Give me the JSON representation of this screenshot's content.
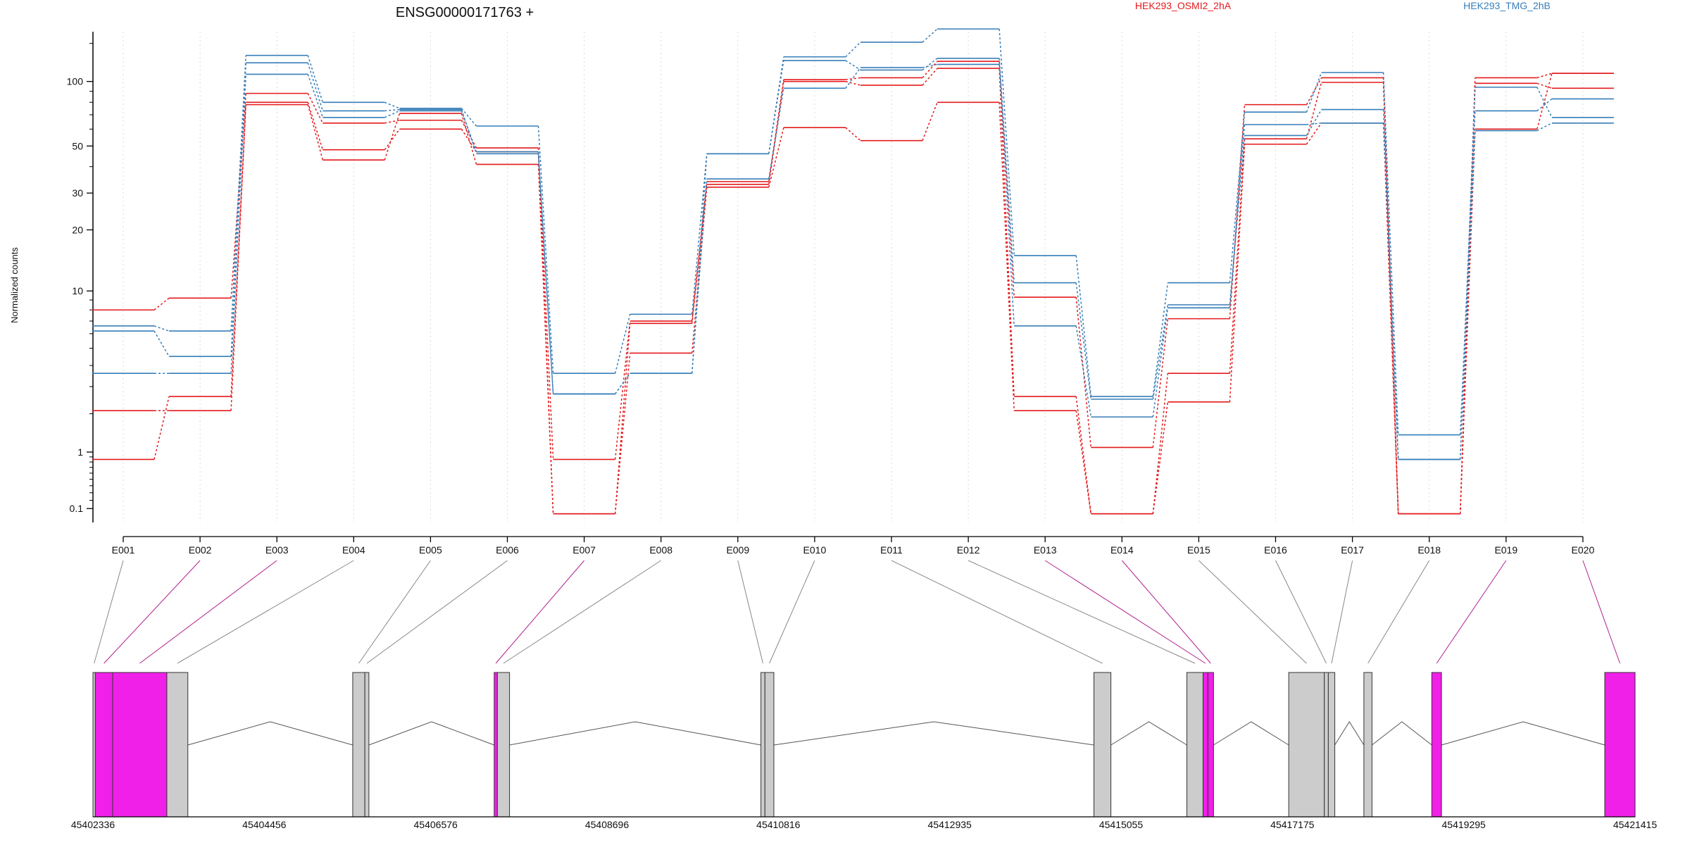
{
  "title": "ENSG00000171763 +",
  "ylabel": "Normalized counts",
  "colors": {
    "OSMI": "#e41a1c",
    "TMG": "#377eb8",
    "exon_bin": "#cccccc",
    "exon_highlight": "#f020e8",
    "axis": "#000000",
    "grid": "#d9d9e3"
  },
  "chart_data": [
    {
      "type": "line",
      "title": "ENSG00000171763 +",
      "ylabel": "Normalized counts",
      "xlabel": "",
      "yscale": "log(1+y) compressed",
      "yticks": [
        0.1,
        1,
        10,
        20,
        30,
        50,
        100
      ],
      "ytick_labels": [
        "0.1",
        "1",
        "10",
        "20",
        "30",
        "50",
        "100"
      ],
      "categories": [
        "E001",
        "E002",
        "E003",
        "E004",
        "E005",
        "E006",
        "E007",
        "E008",
        "E009",
        "E010",
        "E011",
        "E012",
        "E013",
        "E014",
        "E015",
        "E016",
        "E017",
        "E018",
        "E019",
        "E020"
      ],
      "legend": [
        {
          "name": "HEK293_OSMI2_2hA",
          "color": "#e41a1c"
        },
        {
          "name": "HEK293_TMG_2hB",
          "color": "#377eb8"
        }
      ],
      "grid": true,
      "series": [
        {
          "group": "HEK293_OSMI2_2hA",
          "values": [
            8,
            9.2,
            88,
            64,
            66,
            49,
            0.85,
            7,
            34,
            102,
            104,
            124,
            9.3,
            1.1,
            7.2,
            78,
            104,
            0.04,
            104,
            109
          ]
        },
        {
          "group": "HEK293_OSMI2_2hA",
          "values": [
            2.1,
            2.1,
            80,
            48,
            60,
            47,
            0.04,
            6.8,
            33,
            100,
            96,
            115,
            2.6,
            0.04,
            3.6,
            54,
            99,
            0.04,
            98,
            93
          ]
        },
        {
          "group": "HEK293_OSMI2_2hA",
          "values": [
            0.85,
            2.6,
            78,
            43,
            71,
            41,
            0.04,
            4.7,
            32,
            61,
            53,
            80,
            2.1,
            0.04,
            2.4,
            51,
            64,
            0.04,
            60,
            109
          ]
        },
        {
          "group": "HEK293_TMG_2hB",
          "values": [
            6.6,
            6.2,
            132,
            80,
            75,
            62,
            3.6,
            7.6,
            46,
            130,
            152,
            175,
            15,
            2.6,
            11,
            72,
            110,
            1.4,
            73,
            83
          ]
        },
        {
          "group": "HEK293_TMG_2hB",
          "values": [
            6.2,
            4.5,
            122,
            73,
            74,
            46,
            2.7,
            3.6,
            46,
            125,
            113,
            128,
            11,
            2.5,
            8.5,
            56,
            74,
            0.85,
            94,
            68
          ]
        },
        {
          "group": "HEK293_TMG_2hB",
          "values": [
            3.6,
            3.6,
            108,
            68,
            73,
            47,
            2.7,
            3.6,
            35,
            93,
            116,
            120,
            6.6,
            1.9,
            8.2,
            63,
            64,
            0.85,
            59,
            64
          ]
        }
      ]
    },
    {
      "type": "gene-model",
      "coordinate_ticks": [
        "45402336",
        "45404456",
        "45406576",
        "45408696",
        "45410816",
        "45412935",
        "45415055",
        "45417175",
        "45419295",
        "45421415"
      ],
      "x_range": [
        45402336,
        45421415
      ],
      "exon_bins": [
        {
          "id": "E001",
          "start": 45402336,
          "end": 45402365,
          "highlight": false
        },
        {
          "id": "E002",
          "start": 45402365,
          "end": 45402580,
          "highlight": true
        },
        {
          "id": "E003",
          "start": 45402580,
          "end": 45403250,
          "highlight": true
        },
        {
          "id": "E004",
          "start": 45403250,
          "end": 45403510,
          "highlight": false
        },
        {
          "id": "E005",
          "start": 45405550,
          "end": 45405700,
          "highlight": false
        },
        {
          "id": "E006",
          "start": 45405700,
          "end": 45405750,
          "highlight": false
        },
        {
          "id": "E007",
          "start": 45407300,
          "end": 45407340,
          "highlight": true
        },
        {
          "id": "E008",
          "start": 45407340,
          "end": 45407490,
          "highlight": false
        },
        {
          "id": "E009",
          "start": 45410600,
          "end": 45410650,
          "highlight": false
        },
        {
          "id": "E010",
          "start": 45410650,
          "end": 45410760,
          "highlight": false
        },
        {
          "id": "E011",
          "start": 45414720,
          "end": 45414930,
          "highlight": false
        },
        {
          "id": "E012",
          "start": 45415870,
          "end": 45416070,
          "highlight": false
        },
        {
          "id": "E013",
          "start": 45416070,
          "end": 45416130,
          "highlight": true
        },
        {
          "id": "E014",
          "start": 45416130,
          "end": 45416200,
          "highlight": true
        },
        {
          "id": "E015",
          "start": 45417130,
          "end": 45417570,
          "highlight": false
        },
        {
          "id": "E016",
          "start": 45417570,
          "end": 45417620,
          "highlight": false
        },
        {
          "id": "E017",
          "start": 45417620,
          "end": 45417700,
          "highlight": false
        },
        {
          "id": "E018",
          "start": 45418060,
          "end": 45418160,
          "highlight": false
        },
        {
          "id": "E019",
          "start": 45418900,
          "end": 45419020,
          "highlight": true
        },
        {
          "id": "E020",
          "start": 45421040,
          "end": 45421415,
          "highlight": true
        }
      ]
    }
  ]
}
